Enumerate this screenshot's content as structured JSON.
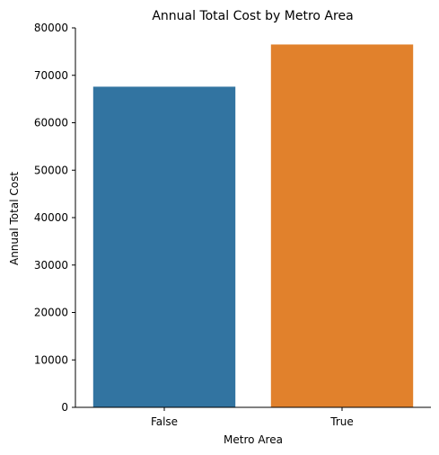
{
  "chart_data": {
    "type": "bar",
    "title": "Annual Total Cost by Metro Area",
    "xlabel": "Metro Area",
    "ylabel": "Annual Total Cost",
    "categories": [
      "False",
      "True"
    ],
    "values": [
      67600,
      76500
    ],
    "ylim": [
      0,
      80000
    ],
    "yticks": [
      "0",
      "10000",
      "20000",
      "30000",
      "40000",
      "50000",
      "60000",
      "70000",
      "80000"
    ],
    "grid": false,
    "legend": "none",
    "colors": [
      "#3274a1",
      "#e1812c"
    ]
  }
}
